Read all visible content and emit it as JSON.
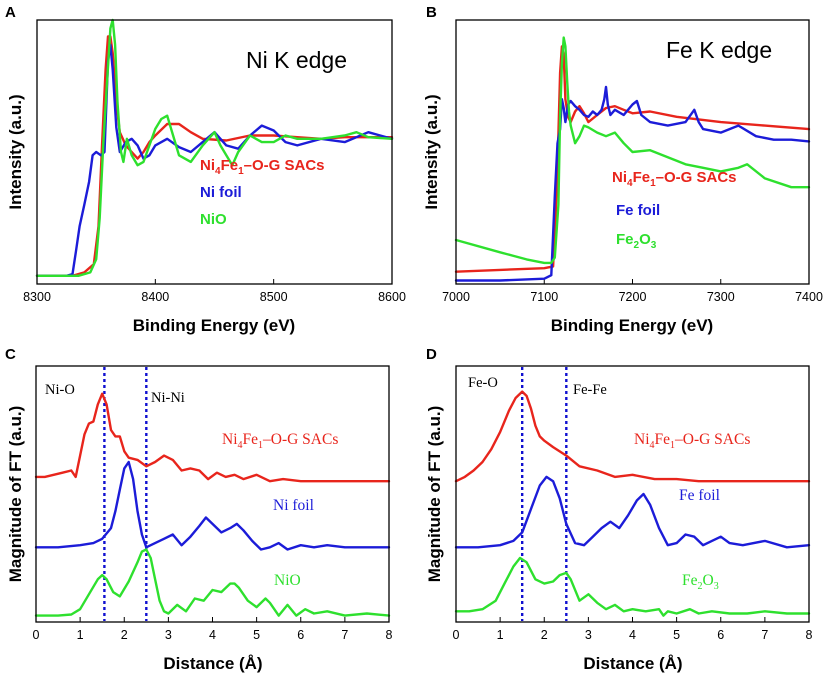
{
  "chart_data": [
    {
      "panel": "A",
      "type": "line",
      "title": "Ni K edge",
      "xlabel": "Binding Energy (eV)",
      "ylabel": "Intensity (a.u.)",
      "xlim": [
        8300,
        8600
      ],
      "ylim": [
        0,
        1.6
      ],
      "xticks": [
        8300,
        8400,
        8500,
        8600
      ],
      "legend": [
        {
          "label": "Ni4Fe1–O-G SACs",
          "main": "Ni",
          "sub1": "4",
          "mid": "Fe",
          "sub2": "1",
          "rest": "–O-G SACs",
          "color": "#e8251c"
        },
        {
          "label": "Ni foil",
          "color": "#1c1cd8"
        },
        {
          "label": "NiO",
          "color": "#2ee02e"
        }
      ],
      "series": [
        {
          "name": "Ni4Fe1–O-G SACs",
          "color": "#e8251c",
          "x": [
            8300,
            8330,
            8340,
            8348,
            8352,
            8355,
            8358,
            8360,
            8362,
            8364,
            8367,
            8370,
            8375,
            8380,
            8385,
            8390,
            8395,
            8400,
            8410,
            8420,
            8430,
            8440,
            8460,
            8480,
            8500,
            8520,
            8540,
            8560,
            8580,
            8600
          ],
          "y": [
            0.05,
            0.05,
            0.07,
            0.12,
            0.35,
            0.85,
            1.3,
            1.5,
            1.5,
            1.4,
            1.1,
            0.92,
            0.84,
            0.8,
            0.76,
            0.8,
            0.86,
            0.9,
            0.97,
            0.97,
            0.92,
            0.88,
            0.87,
            0.9,
            0.9,
            0.89,
            0.88,
            0.89,
            0.89,
            0.89
          ]
        },
        {
          "name": "Ni foil",
          "color": "#1c1cd8",
          "x": [
            8300,
            8325,
            8330,
            8333,
            8336,
            8340,
            8344,
            8347,
            8350,
            8354,
            8357,
            8360,
            8362,
            8364,
            8367,
            8370,
            8375,
            8380,
            8385,
            8390,
            8395,
            8400,
            8410,
            8420,
            8430,
            8440,
            8450,
            8460,
            8470,
            8480,
            8490,
            8500,
            8510,
            8520,
            8540,
            8560,
            8580,
            8590,
            8600
          ],
          "y": [
            0.05,
            0.05,
            0.06,
            0.2,
            0.35,
            0.48,
            0.62,
            0.78,
            0.8,
            0.78,
            0.8,
            1.35,
            1.45,
            1.3,
            0.95,
            0.8,
            0.86,
            0.88,
            0.84,
            0.76,
            0.78,
            0.84,
            0.88,
            0.83,
            0.8,
            0.86,
            0.92,
            0.84,
            0.82,
            0.9,
            0.96,
            0.93,
            0.86,
            0.84,
            0.88,
            0.86,
            0.92,
            0.9,
            0.88
          ]
        },
        {
          "name": "NiO",
          "color": "#2ee02e",
          "x": [
            8300,
            8335,
            8345,
            8350,
            8353,
            8356,
            8359,
            8362,
            8364,
            8366,
            8368,
            8371,
            8373,
            8376,
            8380,
            8385,
            8390,
            8395,
            8400,
            8405,
            8410,
            8415,
            8420,
            8430,
            8440,
            8450,
            8455,
            8460,
            8465,
            8470,
            8480,
            8490,
            8500,
            8510,
            8520,
            8540,
            8560,
            8570,
            8580,
            8600
          ],
          "y": [
            0.05,
            0.05,
            0.07,
            0.15,
            0.4,
            0.85,
            1.2,
            1.55,
            1.6,
            1.45,
            1.1,
            0.8,
            0.74,
            0.88,
            0.78,
            0.72,
            0.74,
            0.84,
            0.94,
            1.0,
            1.02,
            0.9,
            0.78,
            0.74,
            0.84,
            0.92,
            0.84,
            0.78,
            0.72,
            0.8,
            0.9,
            0.86,
            0.86,
            0.9,
            0.88,
            0.88,
            0.9,
            0.92,
            0.89,
            0.88
          ]
        }
      ]
    },
    {
      "panel": "B",
      "type": "line",
      "title": "Fe K edge",
      "xlabel": "Binding Energy (eV)",
      "ylabel": "Intensity (a.u.)",
      "xlim": [
        7000,
        7400
      ],
      "ylim": [
        0,
        1.5
      ],
      "xticks": [
        7000,
        7100,
        7200,
        7300,
        7400
      ],
      "legend": [
        {
          "label": "Ni4Fe1–O-G SACs",
          "main": "Ni",
          "sub1": "4",
          "mid": "Fe",
          "sub2": "1",
          "rest": "–O-G SACs",
          "color": "#e8251c"
        },
        {
          "label": "Fe foil",
          "color": "#1c1cd8"
        },
        {
          "label": "Fe2O3",
          "main": "Fe",
          "sub1": "2",
          "mid": "O",
          "sub2": "3",
          "rest": "",
          "color": "#2ee02e"
        }
      ],
      "series": [
        {
          "name": "Ni4Fe1–O-G SACs",
          "color": "#e8251c",
          "x": [
            7000,
            7050,
            7100,
            7110,
            7113,
            7116,
            7118,
            7120,
            7122,
            7124,
            7127,
            7130,
            7135,
            7140,
            7145,
            7150,
            7160,
            7170,
            7180,
            7190,
            7200,
            7220,
            7250,
            7300,
            7350,
            7400
          ],
          "y": [
            0.07,
            0.08,
            0.09,
            0.1,
            0.4,
            0.85,
            1.2,
            1.35,
            1.3,
            1.05,
            0.95,
            0.92,
            0.98,
            1.01,
            0.97,
            0.92,
            0.96,
            1.0,
            1.01,
            0.99,
            0.97,
            0.98,
            0.95,
            0.92,
            0.9,
            0.88
          ]
        },
        {
          "name": "Fe foil",
          "color": "#1c1cd8",
          "x": [
            7000,
            7050,
            7100,
            7108,
            7112,
            7115,
            7118,
            7120,
            7122,
            7124,
            7127,
            7130,
            7135,
            7140,
            7145,
            7150,
            7155,
            7160,
            7165,
            7168,
            7170,
            7172,
            7175,
            7180,
            7190,
            7200,
            7205,
            7210,
            7220,
            7240,
            7260,
            7270,
            7275,
            7280,
            7300,
            7320,
            7340,
            7360,
            7380,
            7400
          ],
          "y": [
            0.02,
            0.02,
            0.03,
            0.05,
            0.5,
            0.8,
            0.88,
            1.05,
            1.0,
            0.92,
            1.02,
            1.04,
            1.01,
            0.99,
            0.96,
            0.95,
            0.98,
            0.96,
            0.99,
            1.05,
            1.12,
            1.02,
            0.96,
            0.99,
            0.96,
            1.02,
            1.04,
            0.96,
            0.92,
            0.9,
            0.92,
            0.99,
            0.92,
            0.88,
            0.86,
            0.9,
            0.84,
            0.82,
            0.82,
            0.81
          ]
        },
        {
          "name": "Fe2O3",
          "color": "#2ee02e",
          "x": [
            7000,
            7050,
            7080,
            7100,
            7108,
            7112,
            7116,
            7118,
            7120,
            7122,
            7124,
            7126,
            7128,
            7130,
            7135,
            7140,
            7145,
            7150,
            7160,
            7170,
            7180,
            7190,
            7200,
            7220,
            7240,
            7260,
            7280,
            7300,
            7320,
            7330,
            7350,
            7380,
            7400
          ],
          "y": [
            0.25,
            0.18,
            0.14,
            0.12,
            0.12,
            0.15,
            0.45,
            0.95,
            1.25,
            1.4,
            1.35,
            1.15,
            0.98,
            0.9,
            0.8,
            0.84,
            0.9,
            0.89,
            0.86,
            0.84,
            0.86,
            0.8,
            0.75,
            0.76,
            0.72,
            0.68,
            0.66,
            0.64,
            0.66,
            0.68,
            0.6,
            0.55,
            0.55
          ]
        }
      ]
    },
    {
      "panel": "C",
      "type": "line",
      "xlabel": "Distance (Å)",
      "ylabel": "Magnitude of FT (a.u.)",
      "xlim": [
        0,
        8
      ],
      "ylim": [
        0,
        12
      ],
      "xticks": [
        0,
        1,
        2,
        3,
        4,
        5,
        6,
        7,
        8
      ],
      "vlines": [
        {
          "x": 1.55,
          "label": "Ni-O"
        },
        {
          "x": 2.5,
          "label": "Ni-Ni"
        }
      ],
      "legend": [
        {
          "label": "Ni4Fe1–O-G SACs",
          "main": "Ni",
          "sub1": "4",
          "mid": "Fe",
          "sub2": "1",
          "rest": "–O-G SACs",
          "color": "#e8251c"
        },
        {
          "label": "Ni foil",
          "color": "#1c1cd8"
        },
        {
          "label": "NiO",
          "color": "#2ee02e"
        }
      ],
      "series": [
        {
          "name": "Ni4Fe1–O-G SACs",
          "color": "#e8251c",
          "x": [
            0,
            0.2,
            0.4,
            0.6,
            0.8,
            0.9,
            1.0,
            1.1,
            1.2,
            1.3,
            1.4,
            1.5,
            1.6,
            1.7,
            1.8,
            1.9,
            2.0,
            2.1,
            2.3,
            2.5,
            2.7,
            2.9,
            3.1,
            3.3,
            3.5,
            3.7,
            3.9,
            4.1,
            4.3,
            4.5,
            4.7,
            5,
            5.3,
            5.6,
            6,
            6.5,
            7,
            7.5,
            8
          ],
          "y": [
            6.8,
            6.8,
            6.9,
            7.0,
            7.1,
            6.8,
            7.8,
            8.8,
            9.3,
            9.4,
            10.2,
            10.7,
            10.2,
            9.0,
            8.7,
            8.7,
            8.0,
            7.7,
            7.6,
            7.3,
            7.5,
            7.8,
            7.6,
            7.1,
            7.2,
            7.1,
            6.7,
            7.0,
            6.8,
            6.9,
            6.7,
            6.9,
            6.6,
            6.7,
            6.6,
            6.6,
            6.6,
            6.6,
            6.6
          ]
        },
        {
          "name": "Ni foil",
          "color": "#1c1cd8",
          "x": [
            0,
            0.5,
            1.0,
            1.3,
            1.5,
            1.7,
            1.8,
            1.9,
            2.0,
            2.1,
            2.2,
            2.3,
            2.4,
            2.5,
            2.7,
            2.9,
            3.1,
            3.3,
            3.5,
            3.7,
            3.85,
            4.0,
            4.2,
            4.4,
            4.55,
            4.7,
            4.9,
            5.1,
            5.3,
            5.5,
            5.7,
            6,
            6.3,
            6.6,
            7,
            7.5,
            8
          ],
          "y": [
            3.5,
            3.5,
            3.6,
            3.7,
            3.9,
            4.4,
            5.2,
            6.2,
            7.2,
            7.5,
            6.7,
            5.2,
            4.1,
            3.5,
            3.7,
            3.9,
            4.1,
            3.6,
            4.0,
            4.5,
            4.9,
            4.6,
            4.2,
            4.4,
            4.6,
            4.3,
            3.8,
            3.4,
            3.5,
            3.7,
            3.4,
            3.6,
            3.5,
            3.6,
            3.5,
            3.5,
            3.5
          ]
        },
        {
          "name": "NiO",
          "color": "#2ee02e",
          "x": [
            0,
            0.5,
            0.8,
            1.0,
            1.2,
            1.4,
            1.5,
            1.6,
            1.75,
            1.9,
            2.1,
            2.3,
            2.4,
            2.5,
            2.6,
            2.7,
            2.8,
            2.9,
            3.0,
            3.2,
            3.4,
            3.6,
            3.8,
            4.0,
            4.2,
            4.4,
            4.5,
            4.6,
            4.8,
            5.0,
            5.2,
            5.3,
            5.5,
            5.7,
            5.9,
            6.1,
            6.3,
            6.6,
            7,
            7.5,
            8
          ],
          "y": [
            0.3,
            0.3,
            0.35,
            0.6,
            1.3,
            2.0,
            2.2,
            2.0,
            1.4,
            1.2,
            1.9,
            2.8,
            3.3,
            3.4,
            3.0,
            2.0,
            1.0,
            0.5,
            0.4,
            0.8,
            0.5,
            1.1,
            1.0,
            1.5,
            1.4,
            1.8,
            1.8,
            1.6,
            1.0,
            0.7,
            1.1,
            0.9,
            0.3,
            0.8,
            0.3,
            0.6,
            0.4,
            0.5,
            0.3,
            0.4,
            0.3
          ]
        }
      ]
    },
    {
      "panel": "D",
      "type": "line",
      "xlabel": "Distance (Å)",
      "ylabel": "Magnitude of FT (a.u.)",
      "xlim": [
        0,
        8
      ],
      "ylim": [
        0,
        12
      ],
      "xticks": [
        0,
        1,
        2,
        3,
        4,
        5,
        6,
        7,
        8
      ],
      "vlines": [
        {
          "x": 1.5,
          "label": "Fe-O"
        },
        {
          "x": 2.5,
          "label": "Fe-Fe"
        }
      ],
      "legend": [
        {
          "label": "Ni4Fe1–O-G SACs",
          "main": "Ni",
          "sub1": "4",
          "mid": "Fe",
          "sub2": "1",
          "rest": "–O-G SACs",
          "color": "#e8251c"
        },
        {
          "label": "Fe foil",
          "color": "#1c1cd8"
        },
        {
          "label": "Fe2O3",
          "main": "Fe",
          "sub1": "2",
          "mid": "O",
          "sub2": "3",
          "rest": "",
          "color": "#2ee02e"
        }
      ],
      "series": [
        {
          "name": "Ni4Fe1–O-G SACs",
          "color": "#e8251c",
          "x": [
            0,
            0.2,
            0.4,
            0.6,
            0.8,
            1.0,
            1.2,
            1.35,
            1.5,
            1.6,
            1.7,
            1.8,
            1.9,
            2.0,
            2.2,
            2.5,
            2.8,
            3.2,
            3.6,
            4,
            4.5,
            5,
            5.5,
            6,
            7,
            8
          ],
          "y": [
            6.6,
            6.8,
            7.1,
            7.5,
            8.1,
            8.9,
            9.9,
            10.5,
            10.8,
            10.6,
            10.0,
            9.2,
            8.7,
            8.5,
            8.2,
            7.8,
            7.3,
            7.1,
            6.8,
            6.9,
            6.7,
            6.7,
            6.6,
            6.6,
            6.6,
            6.6
          ]
        },
        {
          "name": "Fe foil",
          "color": "#1c1cd8",
          "x": [
            0,
            0.5,
            1.0,
            1.3,
            1.5,
            1.7,
            1.9,
            2.05,
            2.2,
            2.35,
            2.5,
            2.7,
            2.9,
            3.1,
            3.3,
            3.5,
            3.7,
            3.9,
            4.1,
            4.25,
            4.4,
            4.6,
            4.8,
            5.0,
            5.2,
            5.4,
            5.6,
            5.8,
            6.0,
            6.2,
            6.5,
            7,
            7.5,
            8
          ],
          "y": [
            3.5,
            3.5,
            3.6,
            3.8,
            4.2,
            5.3,
            6.4,
            6.8,
            6.6,
            5.8,
            4.6,
            3.7,
            3.6,
            4.0,
            4.4,
            4.7,
            4.4,
            5.0,
            5.7,
            6.0,
            5.5,
            4.4,
            3.6,
            3.7,
            4.1,
            4.0,
            3.6,
            3.8,
            4.0,
            3.7,
            3.6,
            3.8,
            3.5,
            3.6
          ]
        },
        {
          "name": "Fe2O3",
          "color": "#2ee02e",
          "x": [
            0,
            0.3,
            0.6,
            0.9,
            1.1,
            1.3,
            1.45,
            1.6,
            1.8,
            2.0,
            2.2,
            2.35,
            2.5,
            2.6,
            2.8,
            3.0,
            3.2,
            3.4,
            3.6,
            3.8,
            4.0,
            4.3,
            4.6,
            4.7,
            4.8,
            5.0,
            5.3,
            5.5,
            5.8,
            6.2,
            6.6,
            7,
            7.5,
            8
          ],
          "y": [
            0.5,
            0.5,
            0.6,
            1.0,
            1.8,
            2.6,
            3.0,
            2.8,
            2.0,
            1.8,
            1.9,
            2.2,
            2.3,
            2.0,
            1.0,
            1.3,
            0.9,
            0.6,
            0.8,
            0.5,
            0.6,
            0.5,
            0.6,
            0.3,
            0.5,
            0.4,
            0.6,
            0.4,
            0.5,
            0.4,
            0.4,
            0.5,
            0.4,
            0.4
          ]
        }
      ]
    }
  ]
}
